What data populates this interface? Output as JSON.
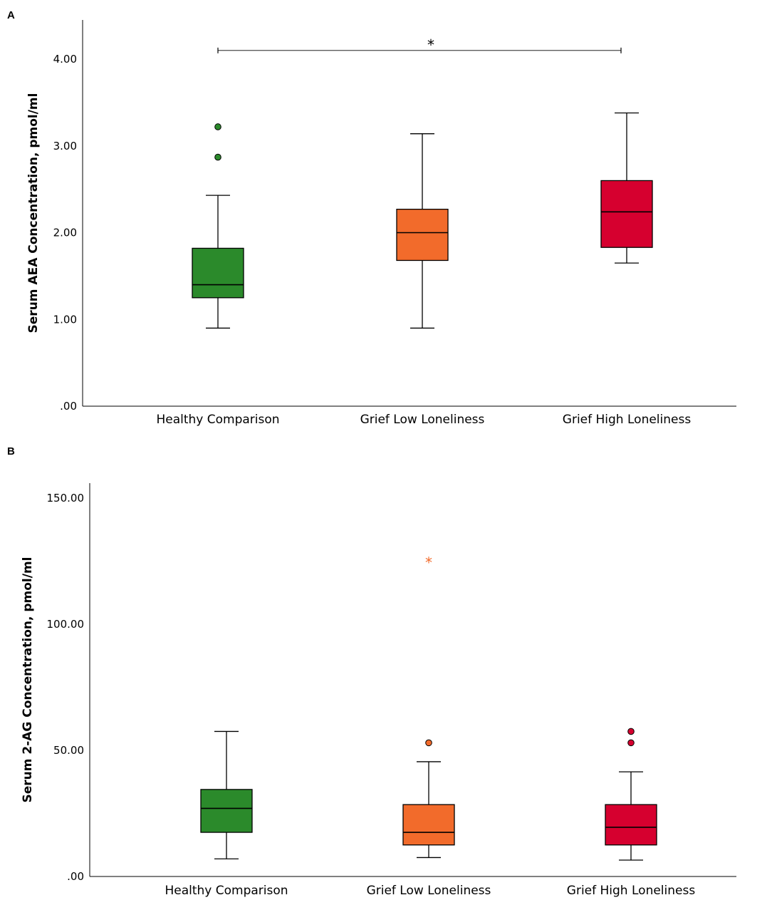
{
  "chart_data": [
    {
      "panel": "A",
      "type": "box",
      "title": "",
      "xlabel": "",
      "ylabel": "Serum AEA Concentration, pmol/ml",
      "ylim": [
        0,
        4.4
      ],
      "yticks": [
        0,
        1,
        2,
        3,
        4
      ],
      "ytick_labels": [
        ".00",
        "1.00",
        "2.00",
        "3.00",
        "4.00"
      ],
      "categories": [
        "Healthy Comparison",
        "Grief Low Loneliness",
        "Grief High Loneliness"
      ],
      "boxes": [
        {
          "name": "Healthy Comparison",
          "color": "#2b8a2b",
          "min": 0.9,
          "q1": 1.25,
          "median": 1.4,
          "q3": 1.82,
          "max": 2.43,
          "outliers": [
            {
              "value": 3.22,
              "symbol": "circle"
            },
            {
              "value": 2.87,
              "symbol": "circle"
            }
          ]
        },
        {
          "name": "Grief Low Loneliness",
          "color": "#f26b2b",
          "min": 0.9,
          "q1": 1.68,
          "median": 2.0,
          "q3": 2.27,
          "max": 3.14,
          "outliers": []
        },
        {
          "name": "Grief High Loneliness",
          "color": "#d6002f",
          "min": 1.65,
          "q1": 1.83,
          "median": 2.24,
          "q3": 2.6,
          "max": 3.38,
          "outliers": []
        }
      ],
      "significance": {
        "from": "Healthy Comparison",
        "to": "Grief High Loneliness",
        "y": 4.1,
        "label": "*"
      }
    },
    {
      "panel": "B",
      "type": "box",
      "title": "",
      "xlabel": "",
      "ylabel": "Serum 2-AG Concentration, pmol/ml",
      "ylim": [
        0,
        155
      ],
      "yticks": [
        0,
        50,
        100,
        150
      ],
      "ytick_labels": [
        ".00",
        "50.00",
        "100.00",
        "150.00"
      ],
      "categories": [
        "Healthy Comparison",
        "Grief Low Loneliness",
        "Grief High Loneliness"
      ],
      "boxes": [
        {
          "name": "Healthy Comparison",
          "color": "#2b8a2b",
          "min": 7,
          "q1": 17.5,
          "median": 27,
          "q3": 34.5,
          "max": 57.5,
          "outliers": []
        },
        {
          "name": "Grief Low Loneliness",
          "color": "#f26b2b",
          "min": 7.5,
          "q1": 12.5,
          "median": 17.5,
          "q3": 28.5,
          "max": 45.5,
          "outliers": [
            {
              "value": 53,
              "symbol": "circle"
            },
            {
              "value": 125,
              "symbol": "star"
            }
          ]
        },
        {
          "name": "Grief High Loneliness",
          "color": "#d6002f",
          "min": 6.5,
          "q1": 12.5,
          "median": 19.5,
          "q3": 28.5,
          "max": 41.5,
          "outliers": [
            {
              "value": 57.5,
              "symbol": "circle"
            },
            {
              "value": 53,
              "symbol": "circle"
            }
          ]
        }
      ]
    }
  ]
}
